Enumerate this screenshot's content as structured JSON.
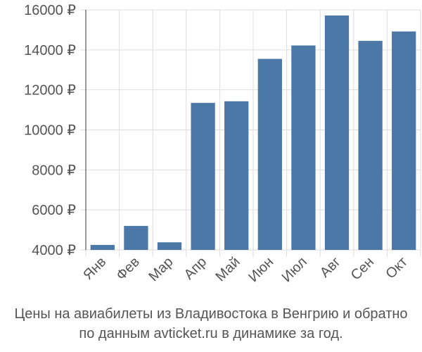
{
  "chart_data": {
    "type": "bar",
    "categories": [
      "Янв",
      "Фев",
      "Мар",
      "Апр",
      "Май",
      "Июн",
      "Июл",
      "Авг",
      "Сен",
      "Окт"
    ],
    "values": [
      4250,
      5200,
      4380,
      11350,
      11430,
      13550,
      14220,
      15720,
      14450,
      14920
    ],
    "ylim": [
      4000,
      16000
    ],
    "yticks": [
      4000,
      6000,
      8000,
      10000,
      12000,
      14000,
      16000
    ],
    "ytick_labels": [
      "4000 ₽",
      "6000 ₽",
      "8000 ₽",
      "10000 ₽",
      "12000 ₽",
      "14000 ₽",
      "16000 ₽"
    ],
    "grid": true,
    "bar_color": "#4c78a8"
  },
  "caption": {
    "line1": "Цены на авиабилеты из Владивостока в Венгрию и обратно",
    "line2": "по данным avticket.ru в динамике за год."
  }
}
